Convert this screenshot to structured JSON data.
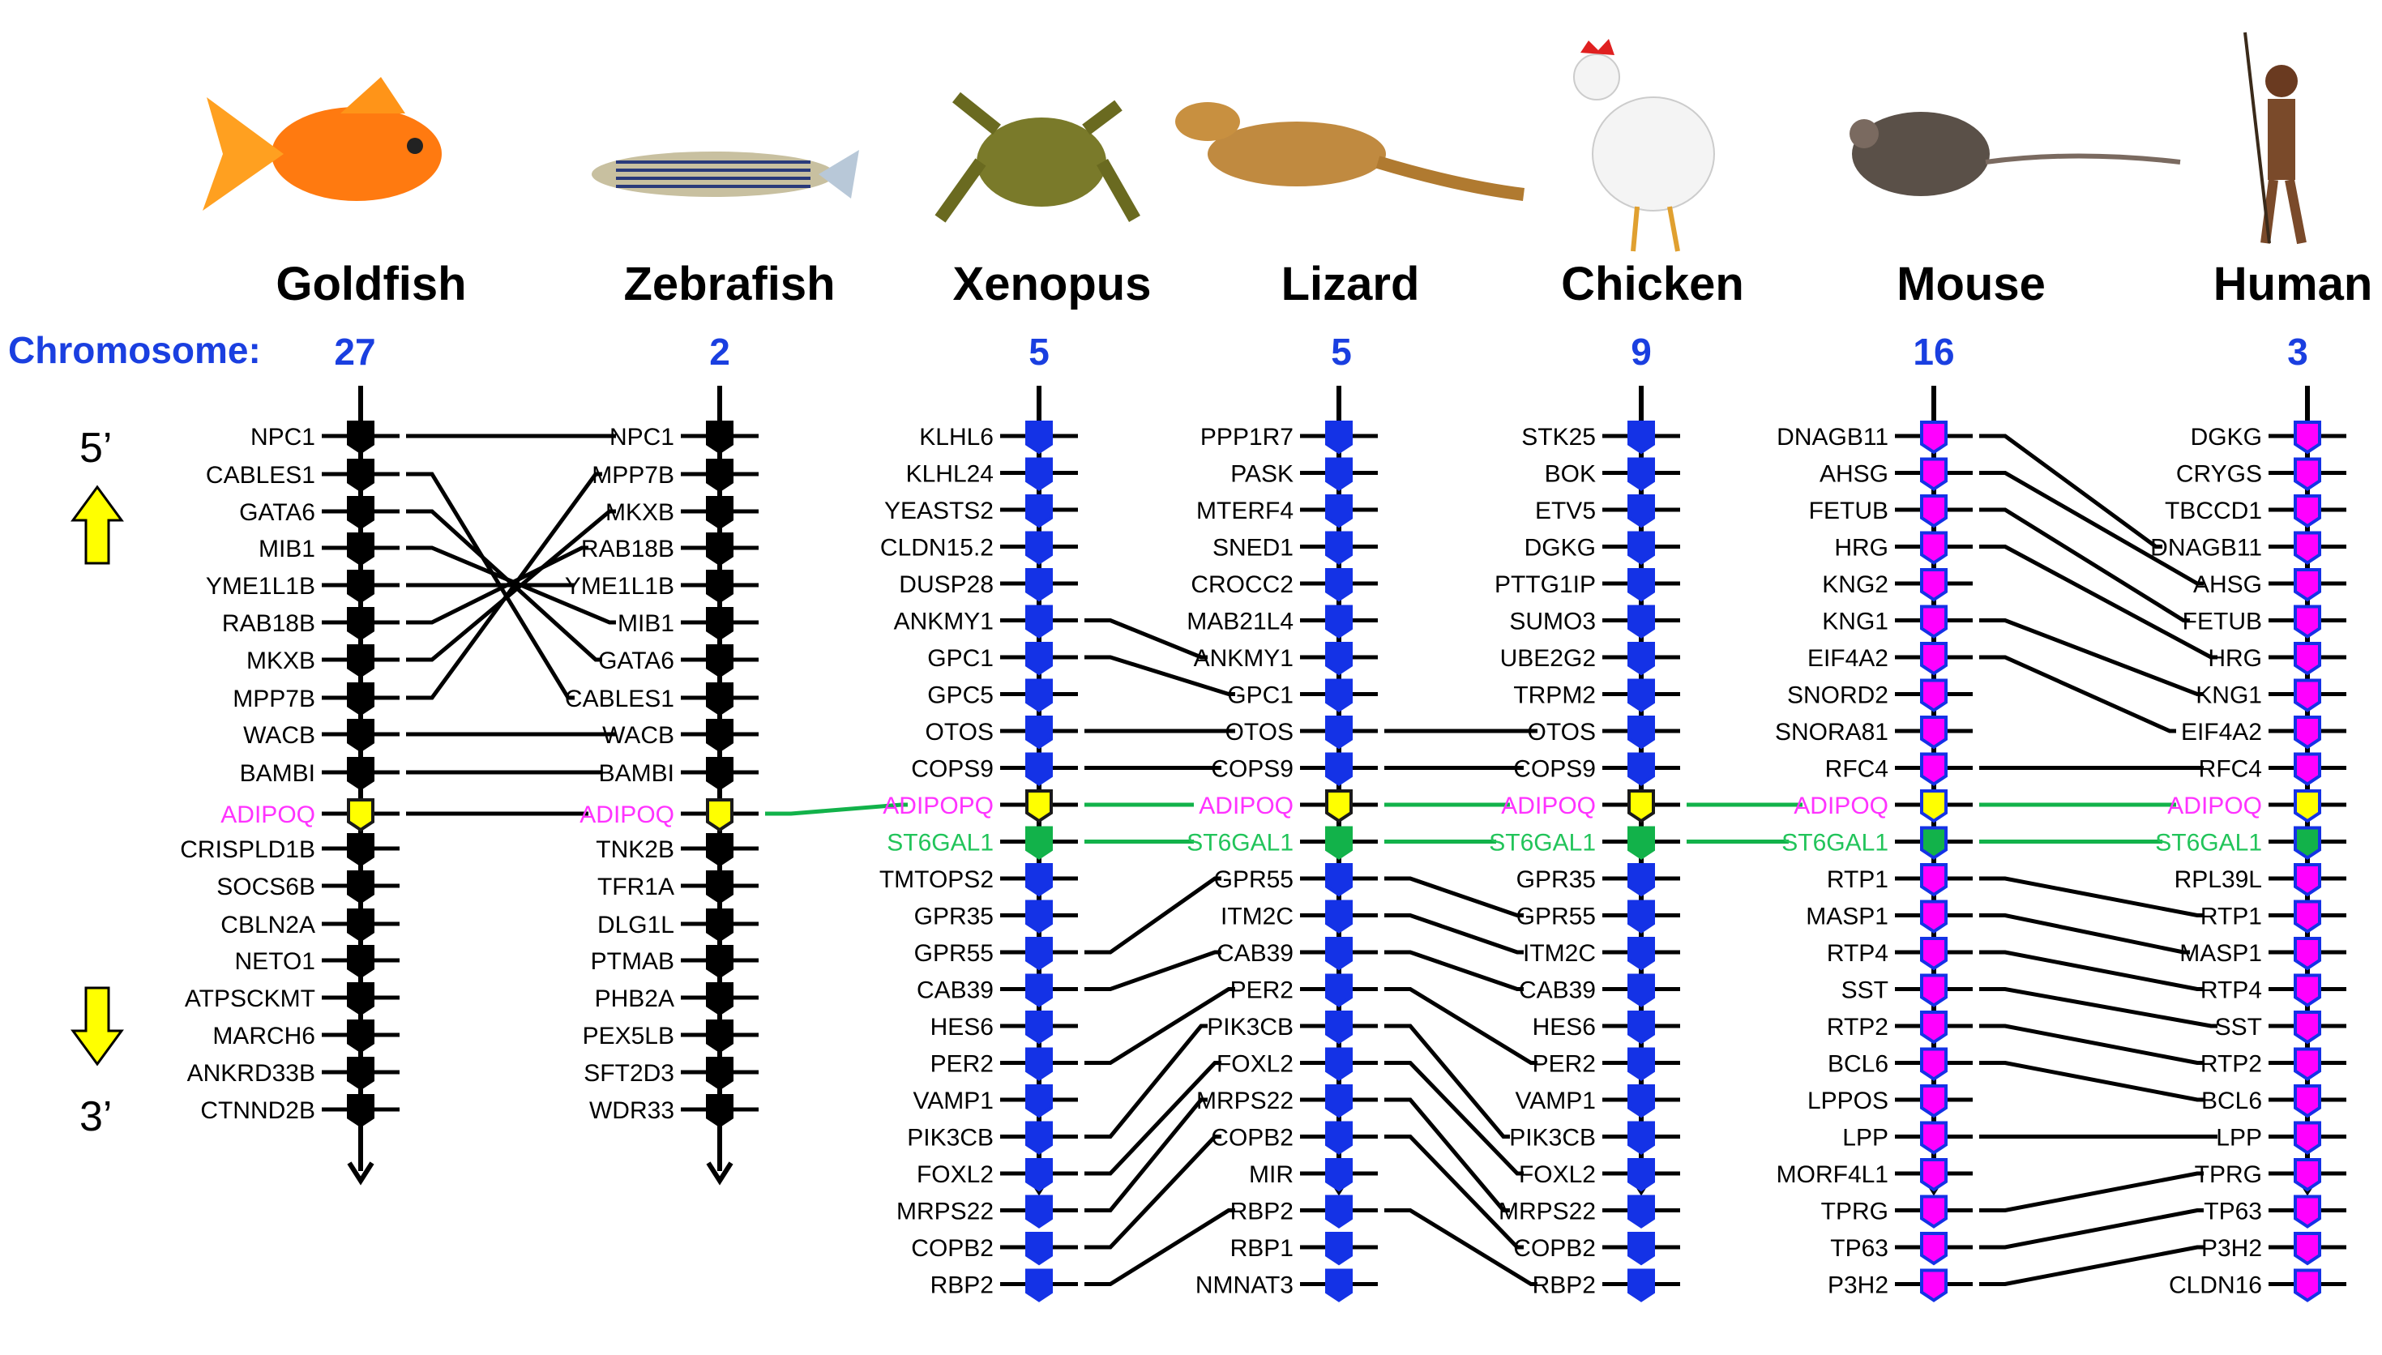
{
  "chromosome_label": "Chromosome:",
  "orientation": {
    "top": "5’",
    "bottom": "3’"
  },
  "colors": {
    "black_track": "#000000",
    "blue_track": "#1432e6",
    "magenta_gene": "#ff00ff",
    "adipoq_gene": "#ffff00",
    "st6gal1_gene": "#12b24a",
    "adipoq_text": "#ff33ff",
    "st6gal1_text": "#22c45a",
    "chromosome_text": "#1a3fe0",
    "arrow_yellow": "#ffff00"
  },
  "species": [
    {
      "name": "Goldfish",
      "chromosome": "27",
      "icon": "goldfish-illustration",
      "style": "black",
      "genes": [
        "NPC1",
        "CABLES1",
        "GATA6",
        "MIB1",
        "YME1L1B",
        "RAB18B",
        "MKXB",
        "MPP7B",
        "WACB",
        "BAMBI",
        "ADIPOQ",
        "CRISPLD1B",
        "SOCS6B",
        "CBLN2A",
        "NETO1",
        "ATPSCKMT",
        "MARCH6",
        "ANKRD33B",
        "CTNND2B"
      ]
    },
    {
      "name": "Zebrafish",
      "chromosome": "2",
      "icon": "zebrafish-illustration",
      "style": "black",
      "genes": [
        "NPC1",
        "MPP7B",
        "MKXB",
        "RAB18B",
        "YME1L1B",
        "MIB1",
        "GATA6",
        "CABLES1",
        "WACB",
        "BAMBI",
        "ADIPOQ",
        "TNK2B",
        "TFR1A",
        "DLG1L",
        "PTMAB",
        "PHB2A",
        "PEX5LB",
        "SFT2D3",
        "WDR33"
      ]
    },
    {
      "name": "Xenopus",
      "chromosome": "5",
      "icon": "frog-illustration",
      "style": "blue",
      "genes": [
        "KLHL6",
        "KLHL24",
        "YEASTS2",
        "CLDN15.2",
        "DUSP28",
        "ANKMY1",
        "GPC1",
        "GPC5",
        "OTOS",
        "COPS9",
        "ADIPOPQ",
        "ST6GAL1",
        "TMTOPS2",
        "GPR35",
        "GPR55",
        "CAB39",
        "HES6",
        "PER2",
        "VAMP1",
        "PIK3CB",
        "FOXL2",
        "MRPS22",
        "COPB2",
        "RBP2"
      ]
    },
    {
      "name": "Lizard",
      "chromosome": "5",
      "icon": "lizard-illustration",
      "style": "blue",
      "genes": [
        "PPP1R7",
        "PASK",
        "MTERF4",
        "SNED1",
        "CROCC2",
        "MAB21L4",
        "ANKMY1",
        "GPC1",
        "OTOS",
        "COPS9",
        "ADIPOQ",
        "ST6GAL1",
        "GPR55",
        "ITM2C",
        "CAB39",
        "PER2",
        "PIK3CB",
        "FOXL2",
        "MRPS22",
        "COPB2",
        "MIR",
        "RBP2",
        "RBP1",
        "NMNAT3"
      ]
    },
    {
      "name": "Chicken",
      "chromosome": "9",
      "icon": "chicken-illustration",
      "style": "blue",
      "genes": [
        "STK25",
        "BOK",
        "ETV5",
        "DGKG",
        "PTTG1IP",
        "SUMO3",
        "UBE2G2",
        "TRPM2",
        "OTOS",
        "COPS9",
        "ADIPOQ",
        "ST6GAL1",
        "GPR35",
        "GPR55",
        "ITM2C",
        "CAB39",
        "HES6",
        "PER2",
        "VAMP1",
        "PIK3CB",
        "FOXL2",
        "MRPS22",
        "COPB2",
        "RBP2"
      ]
    },
    {
      "name": "Mouse",
      "chromosome": "16",
      "icon": "mouse-illustration",
      "style": "magenta",
      "genes": [
        "DNAGB11",
        "AHSG",
        "FETUB",
        "HRG",
        "KNG2",
        "KNG1",
        "EIF4A2",
        "SNORD2",
        "SNORA81",
        "RFC4",
        "ADIPOQ",
        "ST6GAL1",
        "RTP1",
        "MASP1",
        "RTP4",
        "SST",
        "RTP2",
        "BCL6",
        "LPPOS",
        "LPP",
        "MORF4L1",
        "TPRG",
        "TP63",
        "P3H2"
      ]
    },
    {
      "name": "Human",
      "chromosome": "3",
      "icon": "human-illustration",
      "style": "magenta",
      "genes": [
        "DGKG",
        "CRYGS",
        "TBCCD1",
        "DNAGB11",
        "AHSG",
        "FETUB",
        "HRG",
        "KNG1",
        "EIF4A2",
        "RFC4",
        "ADIPOQ",
        "ST6GAL1",
        "RPL39L",
        "RTP1",
        "MASP1",
        "RTP4",
        "SST",
        "RTP2",
        "BCL6",
        "LPP",
        "TPRG",
        "TP63",
        "P3H2",
        "CLDN16"
      ]
    }
  ]
}
